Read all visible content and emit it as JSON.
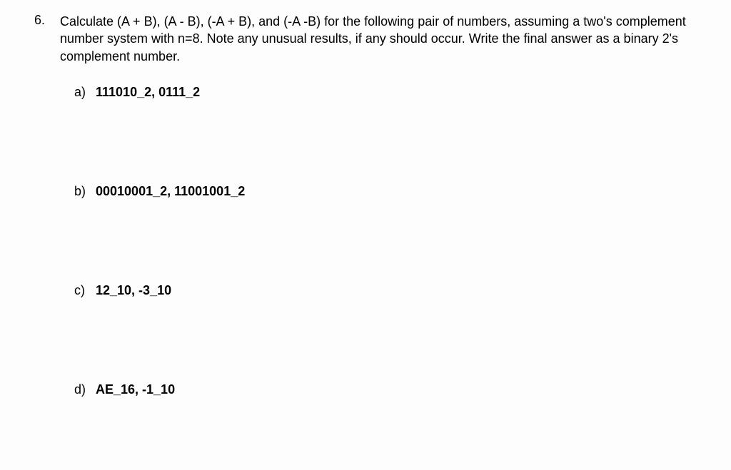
{
  "question": {
    "number": "6.",
    "text": "Calculate (A + B), (A - B), (-A + B), and (-A -B) for the following pair of numbers, assuming a two's complement number system with n=8.  Note any unusual results, if any should occur. Write the final answer as a binary 2's complement number.",
    "items": [
      {
        "label": "a)",
        "value": "111010_2, 0111_2"
      },
      {
        "label": "b)",
        "value": "00010001_2, 11001001_2"
      },
      {
        "label": "c)",
        "value": "12_10, -3_10"
      },
      {
        "label": "d)",
        "value": "AE_16, -1_10"
      }
    ]
  },
  "colors": {
    "background": "#fdfdfd",
    "text": "#000000"
  },
  "typography": {
    "font_family": "Trebuchet MS",
    "question_fontsize": 18,
    "item_fontsize": 18,
    "item_fontweight": 700
  }
}
